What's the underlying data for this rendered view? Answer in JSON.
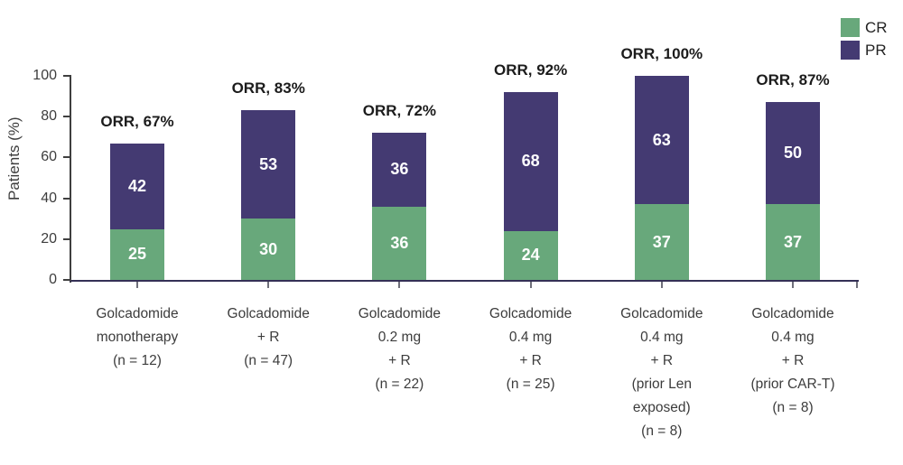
{
  "chart_data": {
    "type": "bar",
    "stacked": true,
    "title": "",
    "ylabel": "Patients (%)",
    "xlabel": "",
    "ylim": [
      0,
      100
    ],
    "yticks": [
      0,
      20,
      40,
      60,
      80,
      100
    ],
    "grid": false,
    "legend_position": "top-right",
    "legend": [
      {
        "label": "CR",
        "color": "#68a87b"
      },
      {
        "label": "PR",
        "color": "#443a72"
      }
    ],
    "categories": [
      [
        "Golcadomide",
        "monotherapy",
        "(n = 12)"
      ],
      [
        "Golcadomide",
        "+ R",
        "(n = 47)"
      ],
      [
        "Golcadomide",
        "0.2 mg",
        "+ R",
        "(n = 22)"
      ],
      [
        "Golcadomide",
        "0.4 mg",
        "+ R",
        "(n = 25)"
      ],
      [
        "Golcadomide",
        "0.4 mg",
        "+ R",
        "(prior Len",
        "exposed)",
        "(n = 8)"
      ],
      [
        "Golcadomide",
        "0.4 mg",
        "+ R",
        "(prior CAR-T)",
        "(n = 8)"
      ]
    ],
    "series": [
      {
        "name": "CR",
        "color": "#68a87b",
        "values": [
          25,
          30,
          36,
          24,
          37,
          37
        ]
      },
      {
        "name": "PR",
        "color": "#443a72",
        "values": [
          42,
          53,
          36,
          68,
          63,
          50
        ]
      }
    ],
    "annotations": [
      "ORR, 67%",
      "ORR, 83%",
      "ORR, 72%",
      "ORR, 92%",
      "ORR, 100%",
      "ORR, 87%"
    ]
  }
}
